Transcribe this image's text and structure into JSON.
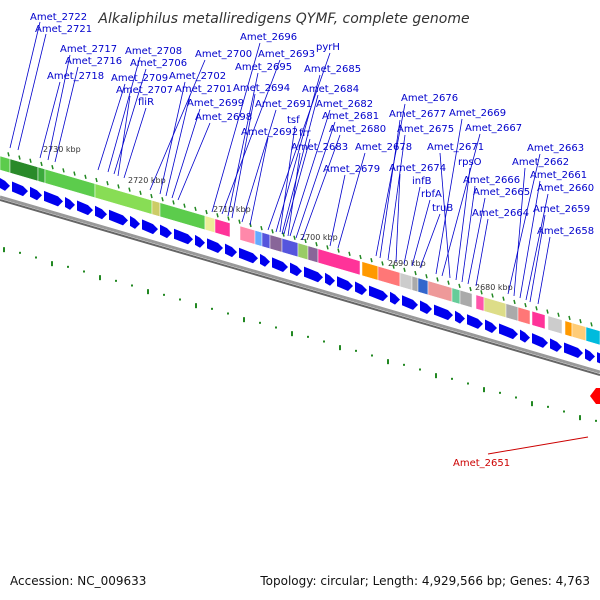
{
  "title": "Alkaliphilus metalliredigens QYMF, complete genome",
  "footer": {
    "accession": "Accession: NC_009633",
    "topology": "Topology: circular; Length: 4,929,566 bp; Genes: 4,763"
  },
  "colors": {
    "label_blue": "#0000cc",
    "gene_blue": "#0000ee",
    "highlight_red": "#cc0000",
    "tick_green": "#228822",
    "backbone_gray": "#777777"
  },
  "ticks": [
    "2730 kbp",
    "2720 kbp",
    "2710 kbp",
    "2700 kbp",
    "2690 kbp",
    "2680 kbp"
  ],
  "gene_labels": [
    "Amet_2722",
    "Amet_2721",
    "Amet_2717",
    "Amet_2716",
    "Amet_2718",
    "Amet_2709",
    "Amet_2708",
    "Amet_2706",
    "Amet_2707",
    "fliR",
    "Amet_2700",
    "Amet_2702",
    "Amet_2701",
    "Amet_2699",
    "Amet_2698",
    "Amet_2696",
    "Amet_2693",
    "Amet_2695",
    "Amet_2694",
    "Amet_2691",
    "Amet_2692",
    "pyrH",
    "Amet_2685",
    "Amet_2684",
    "Amet_2682",
    "Amet_2681",
    "Amet_2680",
    "Amet_2683",
    "tsf",
    "frr",
    "Amet_2678",
    "Amet_2679",
    "Amet_2676",
    "Amet_2677",
    "Amet_2675",
    "Amet_2674",
    "infB",
    "rbfA",
    "truB",
    "Amet_2669",
    "Amet_2667",
    "Amet_2671",
    "rpsO",
    "Amet_2666",
    "Amet_2665",
    "Amet_2664",
    "Amet_2663",
    "Amet_2662",
    "Amet_2661",
    "Amet_2660",
    "Amet_2659",
    "Amet_2658"
  ],
  "highlight_label": "Amet_2651"
}
